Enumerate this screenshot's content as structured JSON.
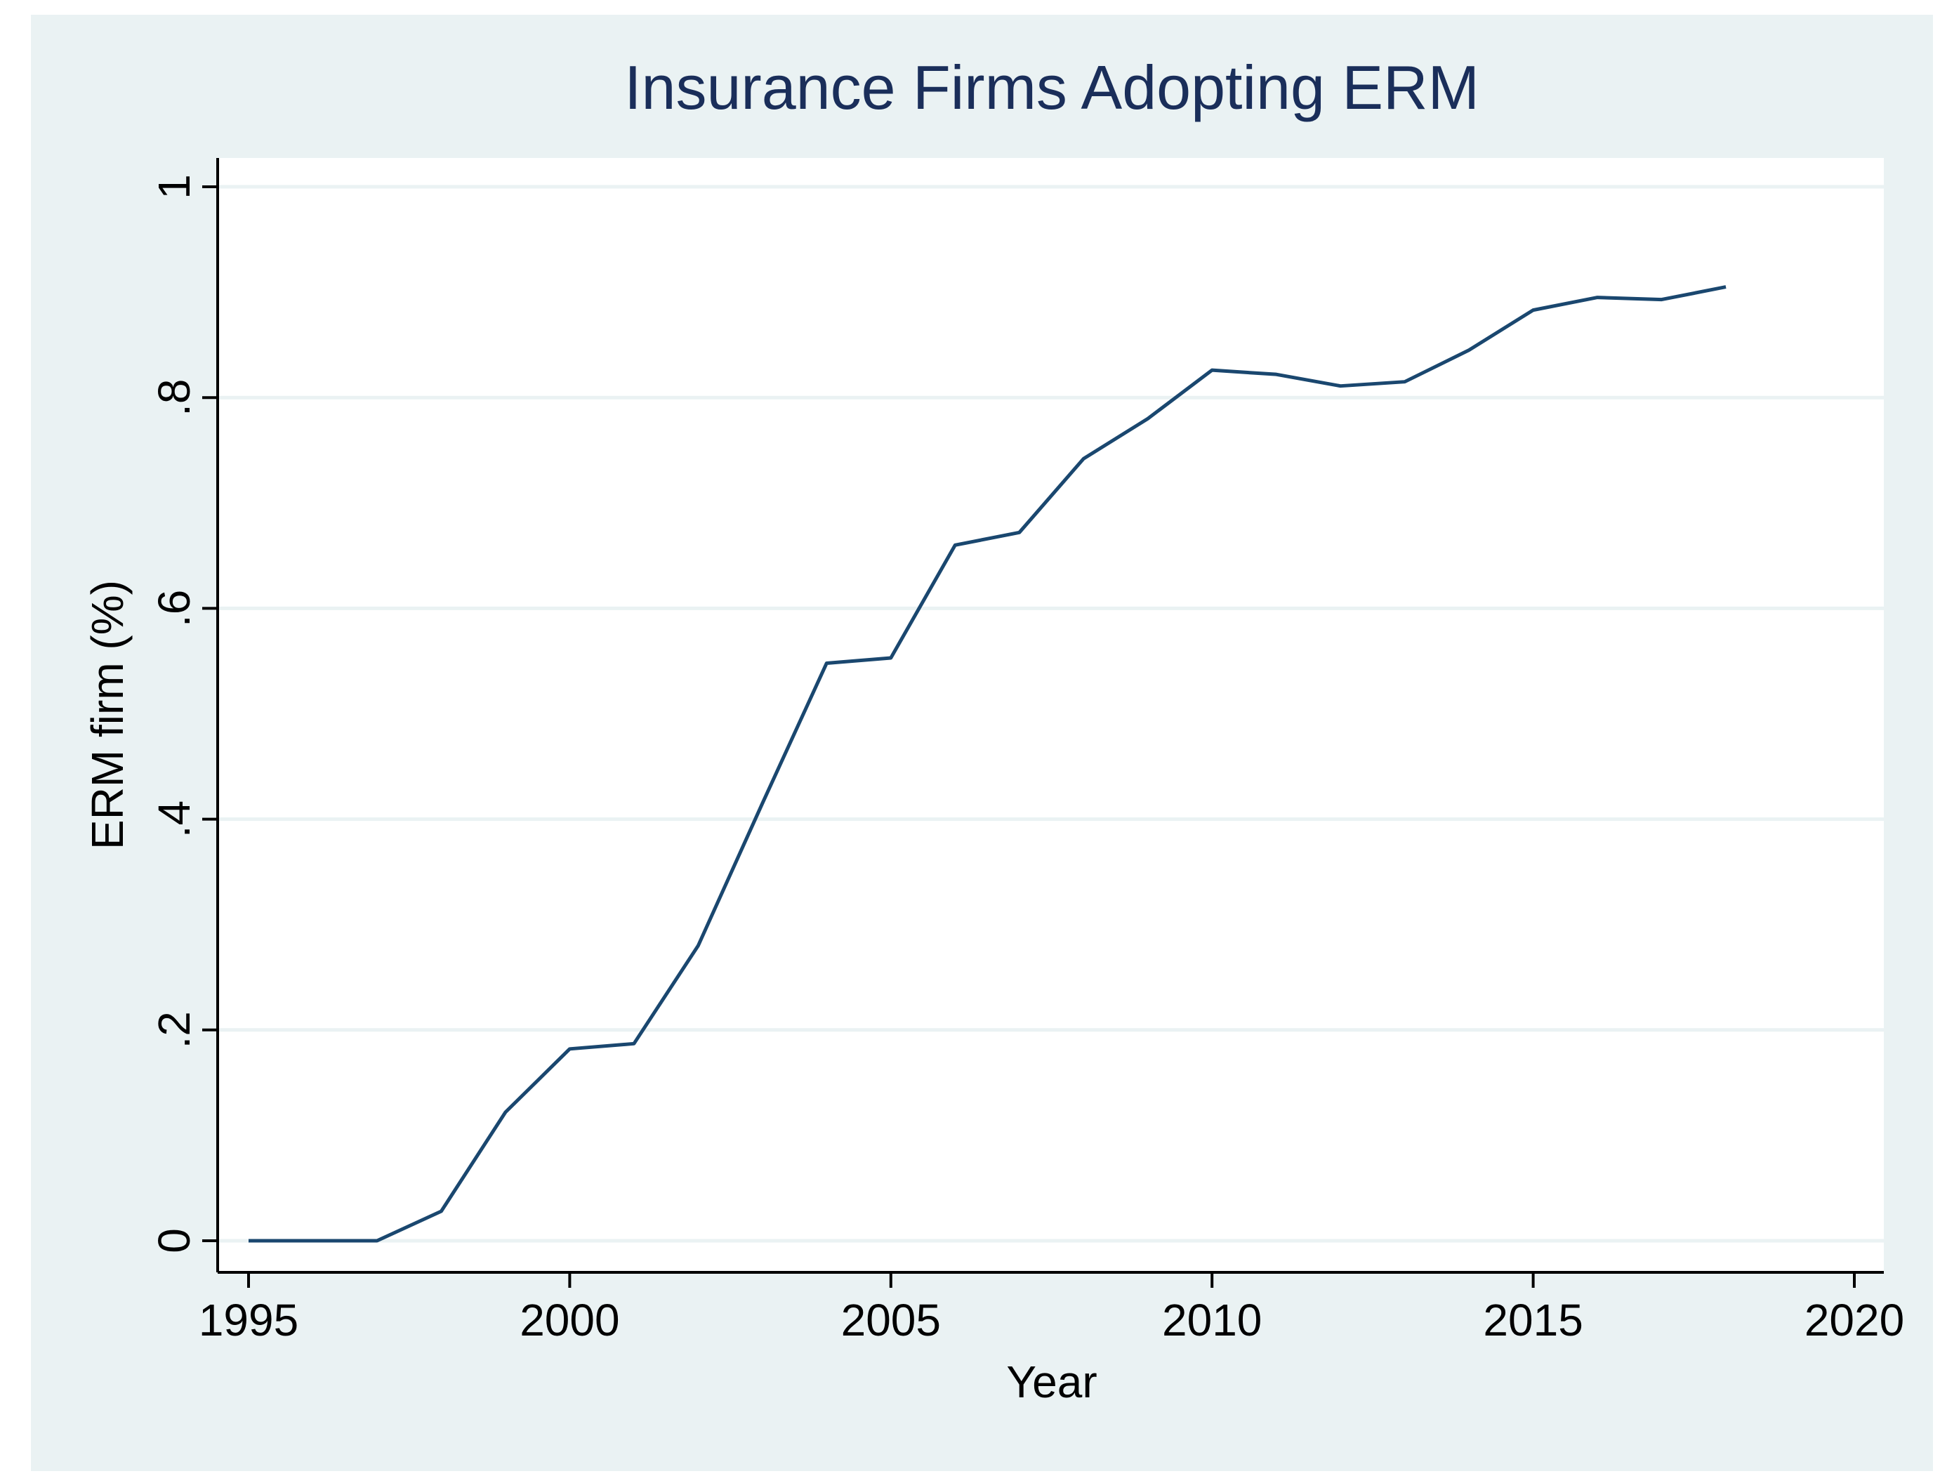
{
  "chart_data": {
    "type": "line",
    "title": "Insurance Firms Adopting ERM",
    "x_label": "Year",
    "y_label": "ERM firm (%)",
    "x": [
      1995,
      1996,
      1997,
      1998,
      1999,
      2000,
      2001,
      2002,
      2003,
      2004,
      2005,
      2006,
      2007,
      2008,
      2009,
      2010,
      2011,
      2012,
      2013,
      2014,
      2015,
      2016,
      2017,
      2018
    ],
    "series": [
      {
        "name": "ERM firm (%)",
        "color": "#1a476f",
        "values": [
          0,
          0,
          0,
          0.028,
          0.122,
          0.182,
          0.187,
          0.28,
          0.415,
          0.548,
          0.553,
          0.66,
          0.672,
          0.742,
          0.78,
          0.826,
          0.822,
          0.811,
          0.815,
          0.845,
          0.883,
          0.895,
          0.893,
          0.905
        ]
      }
    ],
    "xlim": [
      1995,
      2020
    ],
    "xticks": [
      1995,
      2000,
      2005,
      2010,
      2015,
      2020
    ],
    "ylim": [
      0,
      1
    ],
    "yticks": [
      0,
      {
        "value": 0.2,
        "label": ".2"
      },
      {
        "value": 0.4,
        "label": ".4"
      },
      {
        "value": 0.6,
        "label": ".6"
      },
      {
        "value": 0.8,
        "label": ".8"
      },
      1
    ],
    "grid": true
  }
}
